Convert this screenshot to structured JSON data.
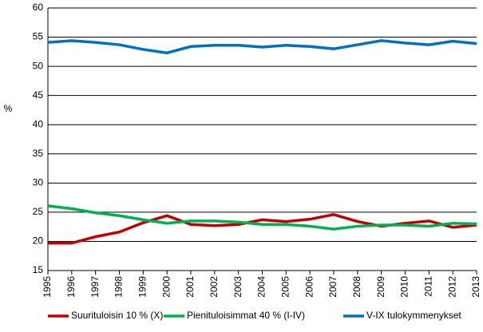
{
  "chart_data": {
    "type": "line",
    "y_label": "%",
    "x": [
      1995,
      1996,
      1997,
      1998,
      1999,
      2000,
      2001,
      2002,
      2003,
      2004,
      2005,
      2006,
      2007,
      2008,
      2009,
      2010,
      2011,
      2012,
      2013
    ],
    "xlim": [
      1995,
      2013
    ],
    "xticks": [
      1995,
      1996,
      1997,
      1998,
      1999,
      2000,
      2001,
      2002,
      2003,
      2004,
      2005,
      2006,
      2007,
      2008,
      2009,
      2010,
      2011,
      2012,
      2013
    ],
    "ylim": [
      15,
      60
    ],
    "yticks": [
      15,
      20,
      25,
      30,
      35,
      40,
      45,
      50,
      55,
      60
    ],
    "grid": true,
    "legend": "bottom",
    "series": [
      {
        "name": "Suurituloisin 10 % (X)",
        "color": "#c00000",
        "values": [
          19.7,
          19.7,
          20.8,
          21.6,
          23.2,
          24.4,
          22.9,
          22.7,
          22.9,
          23.7,
          23.4,
          23.8,
          24.6,
          23.4,
          22.6,
          23.1,
          23.5,
          22.4,
          22.8
        ]
      },
      {
        "name": "Pienituloisimmat 40 % (I-IV)",
        "color": "#00b050",
        "values": [
          26.1,
          25.6,
          24.9,
          24.4,
          23.7,
          23.1,
          23.5,
          23.5,
          23.3,
          22.9,
          22.9,
          22.6,
          22.1,
          22.6,
          22.8,
          22.8,
          22.6,
          23.1,
          23.0
        ]
      },
      {
        "name": "V-IX tulokymmenykset",
        "color": "#0070c0",
        "values": [
          54.1,
          54.4,
          54.1,
          53.7,
          52.9,
          52.3,
          53.4,
          53.6,
          53.6,
          53.3,
          53.6,
          53.4,
          53.0,
          53.7,
          54.4,
          54.0,
          53.7,
          54.3,
          53.9
        ]
      }
    ]
  }
}
